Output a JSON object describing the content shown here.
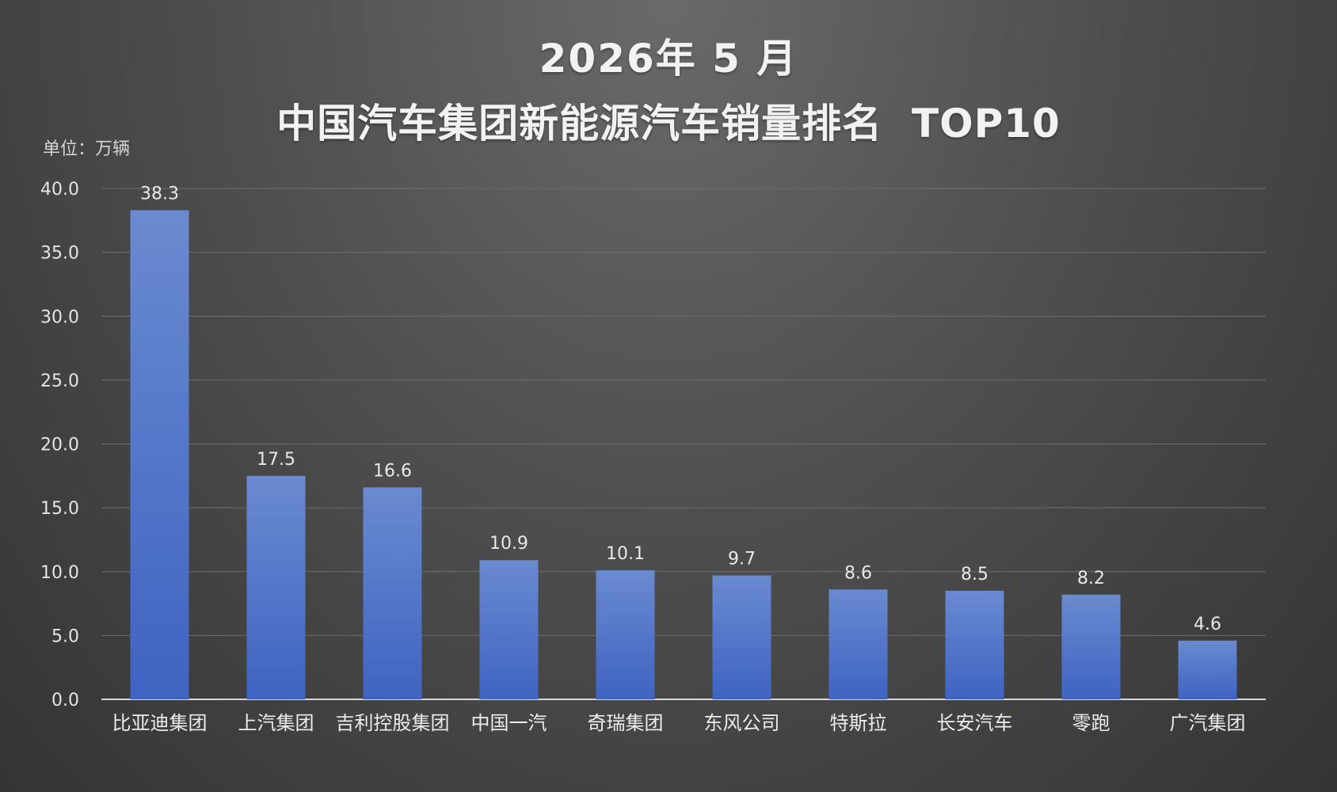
{
  "chart_data": {
    "type": "bar",
    "title": "2026年 5 月",
    "subtitle": "中国汽车集团新能源汽车销量排名  TOP10",
    "unit_label": "单位：万辆",
    "categories": [
      "比亚迪集团",
      "上汽集团",
      "吉利控股集团",
      "中国一汽",
      "奇瑞集团",
      "东风公司",
      "特斯拉",
      "长安汽车",
      "零跑",
      "广汽集团"
    ],
    "values": [
      38.3,
      17.5,
      16.6,
      10.9,
      10.1,
      9.7,
      8.6,
      8.5,
      8.2,
      4.6
    ],
    "value_labels": [
      "38.3",
      "17.5",
      "16.6",
      "10.9",
      "10.1",
      "9.7",
      "8.6",
      "8.5",
      "8.2",
      "4.6"
    ],
    "y_ticks": [
      "0.0",
      "5.0",
      "10.0",
      "15.0",
      "20.0",
      "25.0",
      "30.0",
      "35.0",
      "40.0"
    ],
    "ylim": [
      0,
      40
    ],
    "grid": true,
    "legend": "none",
    "bar_color_top": "#6a8ad0",
    "bar_color_bottom": "#3f63c2"
  }
}
